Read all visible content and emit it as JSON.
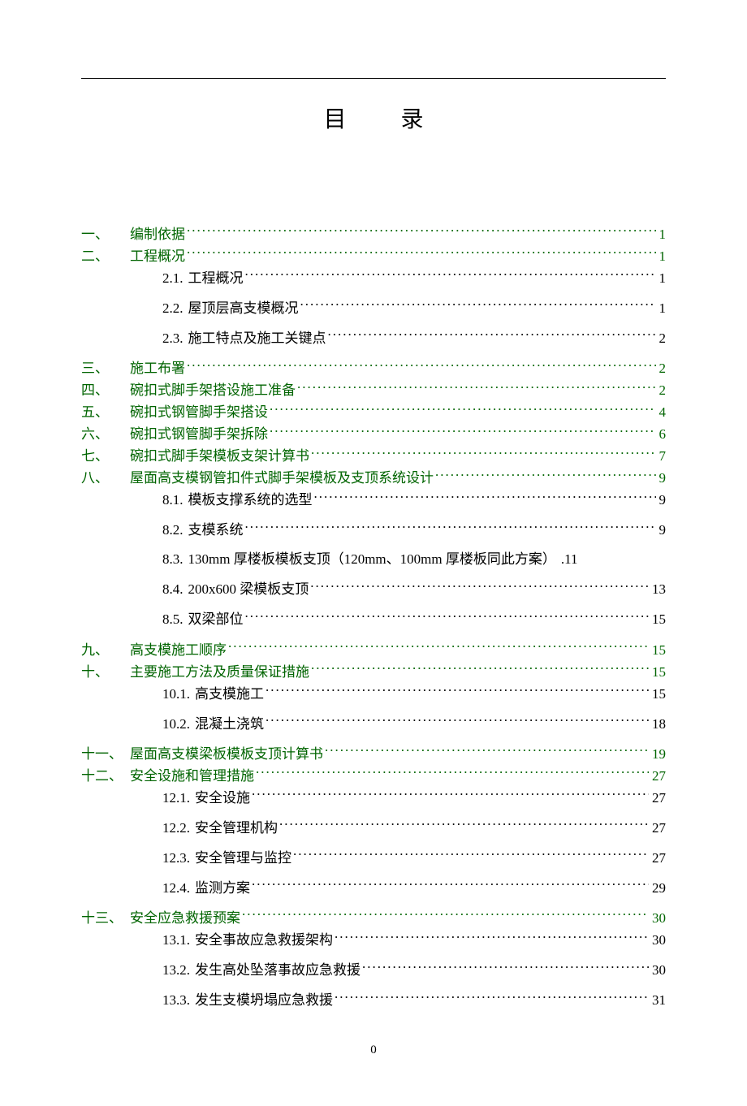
{
  "title": "目 录",
  "colors": {
    "link": "#006400",
    "text": "#000000",
    "background": "#ffffff"
  },
  "typography": {
    "title_fontsize": 28,
    "entry_fontsize": 17,
    "font_family": "SimSun"
  },
  "entries": [
    {
      "num": "一、",
      "label": "编制依据",
      "page": "1",
      "level": 1,
      "link": true
    },
    {
      "num": "二、",
      "label": "工程概况",
      "page": "1",
      "level": 1,
      "link": true
    },
    {
      "num": "2.1.",
      "label": "工程概况",
      "page": "1",
      "level": 2,
      "link": false
    },
    {
      "num": "2.2.",
      "label": "屋顶层高支模概况",
      "page": "1",
      "level": 2,
      "link": false
    },
    {
      "num": "2.3.",
      "label": "施工特点及施工关键点",
      "page": "2",
      "level": 2,
      "link": false
    },
    {
      "num": "三、",
      "label": "施工布署",
      "page": "2",
      "level": 1,
      "link": true
    },
    {
      "num": "四、",
      "label": "碗扣式脚手架搭设施工准备",
      "page": "2",
      "level": 1,
      "link": true
    },
    {
      "num": "五、",
      "label": "碗扣式钢管脚手架搭设",
      "page": "4",
      "level": 1,
      "link": true
    },
    {
      "num": "六、",
      "label": "碗扣式钢管脚手架拆除",
      "page": "6",
      "level": 1,
      "link": true
    },
    {
      "num": "七、",
      "label": "碗扣式脚手架模板支架计算书",
      "page": "7",
      "level": 1,
      "link": true
    },
    {
      "num": "八、",
      "label": "屋面高支模钢管扣件式脚手架模板及支顶系统设计",
      "page": "9",
      "level": 1,
      "link": true
    },
    {
      "num": "8.1.",
      "label": "模板支撑系统的选型",
      "page": "9",
      "level": 2,
      "link": false
    },
    {
      "num": "8.2.",
      "label": "支模系统",
      "page": "9",
      "level": 2,
      "link": false
    },
    {
      "num": "8.3.",
      "label": "130mm 厚楼板模板支顶（120mm、100mm 厚楼板同此方案）",
      "page": ".11",
      "level": 2,
      "link": false,
      "nodots": true
    },
    {
      "num": "8.4.",
      "label": "200x600 梁模板支顶",
      "page": "13",
      "level": 2,
      "link": false
    },
    {
      "num": "8.5.",
      "label": "双梁部位",
      "page": "15",
      "level": 2,
      "link": false
    },
    {
      "num": "九、",
      "label": "高支模施工顺序",
      "page": "15",
      "level": 1,
      "link": true
    },
    {
      "num": "十、",
      "label": "主要施工方法及质量保证措施",
      "page": "15",
      "level": 1,
      "link": true
    },
    {
      "num": "10.1.",
      "label": "高支模施工",
      "page": "15",
      "level": 2,
      "link": false
    },
    {
      "num": "10.2.",
      "label": "混凝土浇筑",
      "page": "18",
      "level": 2,
      "link": false
    },
    {
      "num": "十一、",
      "label": "屋面高支模梁板模板支顶计算书",
      "page": "19",
      "level": 1,
      "link": true
    },
    {
      "num": "十二、",
      "label": "安全设施和管理措施",
      "page": "27",
      "level": 1,
      "link": true
    },
    {
      "num": "12.1.",
      "label": "安全设施",
      "page": "27",
      "level": 2,
      "link": false
    },
    {
      "num": "12.2.",
      "label": "安全管理机构",
      "page": "27",
      "level": 2,
      "link": false
    },
    {
      "num": "12.3.",
      "label": "安全管理与监控",
      "page": "27",
      "level": 2,
      "link": false
    },
    {
      "num": "12.4.",
      "label": "监测方案",
      "page": "29",
      "level": 2,
      "link": false
    },
    {
      "num": "十三、",
      "label": "安全应急救援预案",
      "page": "30",
      "level": 1,
      "link": true
    },
    {
      "num": "13.1.",
      "label": "安全事故应急救援架构",
      "page": "30",
      "level": 2,
      "link": false
    },
    {
      "num": "13.2.",
      "label": "发生高处坠落事故应急救援",
      "page": "30",
      "level": 2,
      "link": false
    },
    {
      "num": "13.3.",
      "label": "发生支模坍塌应急救援",
      "page": "31",
      "level": 2,
      "link": false
    }
  ],
  "footer": "0"
}
